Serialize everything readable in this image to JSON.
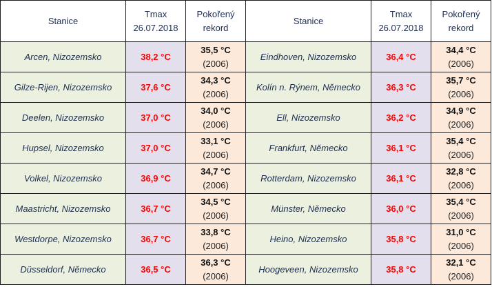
{
  "headers": {
    "station": "Stanice",
    "tmax_line1": "Tmax",
    "tmax_line2": "26.07.2018",
    "record_line1": "Pokořený",
    "record_line2": "rekord"
  },
  "rows": [
    {
      "left": {
        "station": "Arcen, Nizozemsko",
        "tmax": "38,2 °C",
        "record": "35,5 °C",
        "year": "(2006)"
      },
      "right": {
        "station": "Eindhoven, Nizozemsko",
        "tmax": "36,4 °C",
        "record": "34,4 °C",
        "year": "(2006)"
      }
    },
    {
      "left": {
        "station": "Gilze-Rijen, Nizozemsko",
        "tmax": "37,6 °C",
        "record": "34,3 °C",
        "year": "(2006)"
      },
      "right": {
        "station": "Kolín n. Rýnem, Německo",
        "tmax": "36,3 °C",
        "record": "35,7 °C",
        "year": "(2006)"
      }
    },
    {
      "left": {
        "station": "Deelen, Nizozemsko",
        "tmax": "37,0 °C",
        "record": "34,0 °C",
        "year": "(2006)"
      },
      "right": {
        "station": "Ell, Nizozemsko",
        "tmax": "36,2 °C",
        "record": "34,9 °C",
        "year": "(2006)"
      }
    },
    {
      "left": {
        "station": "Hupsel, Nizozemsko",
        "tmax": "37,0 °C",
        "record": "33,1 °C",
        "year": "(2006)"
      },
      "right": {
        "station": "Frankfurt, Německo",
        "tmax": "36,1 °C",
        "record": "35,4 °C",
        "year": "(2006)"
      }
    },
    {
      "left": {
        "station": "Volkel, Nizozemsko",
        "tmax": "36,9 °C",
        "record": "34,7 °C",
        "year": "(2006)"
      },
      "right": {
        "station": "Rotterdam, Nizozemsko",
        "tmax": "36,1 °C",
        "record": "32,8 °C",
        "year": "(2006)"
      }
    },
    {
      "left": {
        "station": "Maastricht, Nizozemsko",
        "tmax": "36,7 °C",
        "record": "34,5 °C",
        "year": "(2006)"
      },
      "right": {
        "station": "Münster, Německo",
        "tmax": "36,0 °C",
        "record": "35,4 °C",
        "year": "(2006)"
      }
    },
    {
      "left": {
        "station": "Westdorpe, Nizozemsko",
        "tmax": "36,7 °C",
        "record": "33,8 °C",
        "year": "(2006)"
      },
      "right": {
        "station": "Heino, Nizozemsko",
        "tmax": "35,8 °C",
        "record": "31,0 °C",
        "year": "(2006)"
      }
    },
    {
      "left": {
        "station": "Düsseldorf, Německo",
        "tmax": "36,5 °C",
        "record": "36,3 °C",
        "year": "(2006)"
      },
      "right": {
        "station": "Hoogeveen, Nizozemsko",
        "tmax": "35,8 °C",
        "record": "32,1 °C",
        "year": "(2006)"
      }
    }
  ],
  "colors": {
    "station_bg": "#ebf1de",
    "tmax_bg": "#e4dfec",
    "tmax_text": "#ff0000",
    "record_bg": "#fde9d9"
  }
}
